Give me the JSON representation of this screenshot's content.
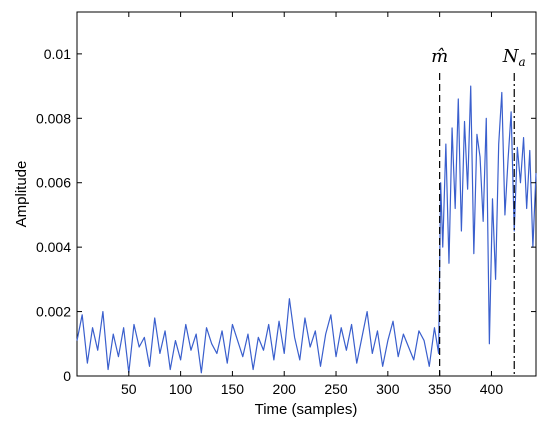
{
  "chart_data": {
    "type": "line",
    "xlabel": "Time (samples)",
    "ylabel": "Amplitude",
    "xlim": [
      0,
      443
    ],
    "ylim": [
      0,
      0.0113
    ],
    "xticks": [
      50,
      100,
      150,
      200,
      250,
      300,
      350,
      400
    ],
    "xtick_labels": [
      "50",
      "100",
      "150",
      "200",
      "250",
      "300",
      "350",
      "400"
    ],
    "yticks": [
      0,
      0.002,
      0.004,
      0.006,
      0.008,
      0.01
    ],
    "ytick_labels": [
      "0",
      "0.002",
      "0.004",
      "0.006",
      "0.008",
      "0.01"
    ],
    "grid": false,
    "line_color": "#3A5FCD",
    "markers": [
      {
        "x": 350,
        "style": "dashed",
        "label": "m̂"
      },
      {
        "x": 422,
        "style": "dashdot",
        "label": "N",
        "label_sub": "a"
      }
    ],
    "series": [
      {
        "x": [
          0,
          5,
          10,
          15,
          20,
          25,
          30,
          35,
          40,
          45,
          50,
          55,
          60,
          65,
          70,
          75,
          80,
          85,
          90,
          95,
          100,
          105,
          110,
          115,
          120,
          125,
          130,
          135,
          140,
          145,
          150,
          155,
          160,
          165,
          170,
          175,
          180,
          185,
          190,
          195,
          200,
          205,
          210,
          215,
          220,
          225,
          230,
          235,
          240,
          245,
          250,
          255,
          260,
          265,
          270,
          275,
          280,
          285,
          290,
          295,
          300,
          305,
          310,
          315,
          320,
          325,
          330,
          335,
          340,
          345,
          349,
          351,
          353,
          356,
          359,
          362,
          365,
          368,
          371,
          374,
          377,
          380,
          383,
          386,
          389,
          392,
          395,
          398,
          401,
          404,
          407,
          410,
          413,
          416,
          419,
          422,
          425,
          428,
          431,
          434,
          437,
          440,
          443
        ],
        "y": [
          0.0011,
          0.0019,
          0.0004,
          0.0015,
          0.0008,
          0.002,
          0.0002,
          0.0013,
          0.0006,
          0.0015,
          0.0001,
          0.0016,
          0.0009,
          0.0012,
          0.0003,
          0.0018,
          0.0007,
          0.0014,
          0.0002,
          0.0011,
          0.0005,
          0.0016,
          0.0008,
          0.0013,
          0.0001,
          0.0015,
          0.001,
          0.0007,
          0.0014,
          0.0004,
          0.0016,
          0.0011,
          0.0006,
          0.0013,
          0.0002,
          0.0012,
          0.0008,
          0.0016,
          0.0005,
          0.0017,
          0.0007,
          0.0024,
          0.0012,
          0.0005,
          0.0018,
          0.0009,
          0.0014,
          0.0003,
          0.0013,
          0.0019,
          0.0006,
          0.0015,
          0.0008,
          0.0016,
          0.0004,
          0.0012,
          0.002,
          0.0007,
          0.0014,
          0.0003,
          0.0011,
          0.0017,
          0.0006,
          0.0013,
          0.0009,
          0.0005,
          0.0014,
          0.0011,
          0.0003,
          0.0015,
          0.0007,
          0.006,
          0.004,
          0.0072,
          0.0035,
          0.0077,
          0.0052,
          0.0086,
          0.0045,
          0.0079,
          0.0058,
          0.009,
          0.0038,
          0.0075,
          0.0068,
          0.0048,
          0.008,
          0.001,
          0.0055,
          0.003,
          0.0072,
          0.0088,
          0.005,
          0.0067,
          0.0082,
          0.0045,
          0.0071,
          0.006,
          0.0074,
          0.0052,
          0.007,
          0.004,
          0.0063
        ]
      }
    ]
  }
}
